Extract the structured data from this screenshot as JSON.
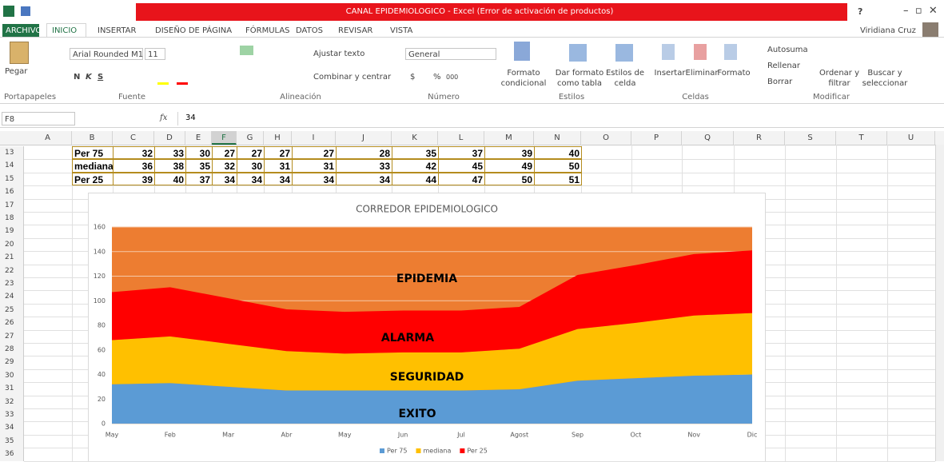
{
  "title_bar": {
    "title": "CANAL EPIDEMIOLOGICO -  Excel (Error de activación de productos)",
    "help": "?"
  },
  "tabs": [
    "ARCHIVO",
    "INICIO",
    "INSERTAR",
    "DISEÑO DE PÁGINA",
    "FÓRMULAS",
    "DATOS",
    "REVISAR",
    "VISTA"
  ],
  "user": "Viridiana Cruz",
  "ribbon": {
    "clipboard": {
      "paste": "Pegar",
      "label": "Portapapeles"
    },
    "font": {
      "name": "Arial Rounded M1",
      "size": "11",
      "bold": "N",
      "italic": "K",
      "underline": "S",
      "label": "Fuente"
    },
    "alignment": {
      "wrap": "Ajustar texto",
      "merge": "Combinar y centrar",
      "label": "Alineación"
    },
    "number": {
      "format": "General",
      "currency": "$",
      "percent": "%",
      "thousands": "000",
      "label": "Número"
    },
    "styles": {
      "conditional": [
        "Formato",
        "condicional"
      ],
      "table": [
        "Dar formato",
        "como tabla"
      ],
      "cell": [
        "Estilos de",
        "celda"
      ],
      "label": "Estilos"
    },
    "cells": {
      "insert": "Insertar",
      "delete": "Eliminar",
      "format": "Formato",
      "label": "Celdas"
    },
    "editing": {
      "autosum": "Autosuma",
      "fill": "Rellenar",
      "clear": "Borrar",
      "sort": [
        "Ordenar y",
        "filtrar"
      ],
      "find": [
        "Buscar y",
        "seleccionar"
      ],
      "label": "Modificar"
    }
  },
  "formula_bar": {
    "name_box": "F8",
    "fx": "fx",
    "formula": "34"
  },
  "sheet": {
    "columns": [
      "A",
      "B",
      "C",
      "D",
      "E",
      "F",
      "G",
      "H",
      "I",
      "J",
      "K",
      "L",
      "M",
      "N",
      "O",
      "P",
      "Q",
      "R",
      "S",
      "T",
      "U"
    ],
    "row_numbers": [
      13,
      14,
      15,
      16,
      17,
      18,
      19,
      20,
      21,
      22,
      23,
      24,
      25,
      26,
      27,
      28,
      29,
      30,
      31,
      32,
      33,
      34,
      35,
      36
    ],
    "rows": [
      {
        "label": "Per 75",
        "values": [
          32,
          33,
          30,
          27,
          27,
          27,
          27,
          28,
          35,
          37,
          39,
          40
        ]
      },
      {
        "label": "mediana",
        "values": [
          36,
          38,
          35,
          32,
          30,
          31,
          31,
          33,
          42,
          45,
          49,
          50
        ]
      },
      {
        "label": "Per 25",
        "values": [
          39,
          40,
          37,
          34,
          34,
          34,
          34,
          34,
          44,
          47,
          50,
          51
        ]
      }
    ]
  },
  "chart_data": {
    "type": "area",
    "stacked": true,
    "title": "CORREDOR EPIDEMIOLOGICO",
    "categories": [
      "May",
      "Feb",
      "Mar",
      "Abr",
      "May",
      "Jun",
      "Jul",
      "Agost",
      "Sep",
      "Oct",
      "Nov",
      "Dic"
    ],
    "series": [
      {
        "name": "Per 75",
        "color": "#5b9bd5",
        "values": [
          32,
          33,
          30,
          27,
          27,
          27,
          27,
          28,
          35,
          37,
          39,
          40
        ]
      },
      {
        "name": "mediana",
        "color": "#ffc000",
        "values": [
          36,
          38,
          35,
          32,
          30,
          31,
          31,
          33,
          42,
          45,
          49,
          50
        ]
      },
      {
        "name": "Per 25",
        "color": "#ff0000",
        "values": [
          39,
          40,
          37,
          34,
          34,
          34,
          34,
          34,
          44,
          47,
          50,
          51
        ]
      }
    ],
    "ylim": [
      0,
      160
    ],
    "yticks": [
      0,
      20,
      40,
      60,
      80,
      100,
      120,
      140,
      160
    ],
    "grid": true,
    "legend": "bottom",
    "plot_color": "#ed7d31",
    "annotations": [
      "EPIDEMIA",
      "ALARMA",
      "SEGURIDAD",
      "EXITO"
    ]
  }
}
